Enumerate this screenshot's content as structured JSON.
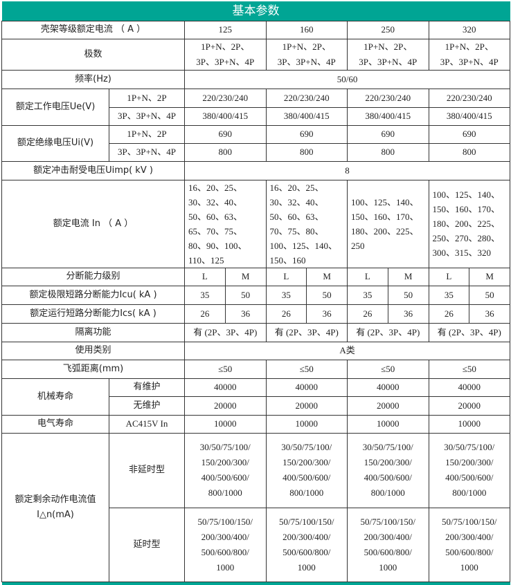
{
  "title": "基本参数",
  "accent_color": "#00a594",
  "frame_current": {
    "label": "壳架等级额定电流 （ A ）",
    "values": [
      "125",
      "160",
      "250",
      "320"
    ]
  },
  "poles": {
    "label": "极数",
    "values": [
      "1P+N、2P、\n3P、3P+N、4P",
      "1P+N、2P、\n3P、3P+N、4P",
      "1P+N、2P、\n3P、3P+N、4P",
      "1P+N、2P、\n3P、3P+N、4P"
    ]
  },
  "frequency": {
    "label": "频率(Hz)",
    "value": "50/60"
  },
  "ue": {
    "label": "额定工作电压Ue(V)",
    "sub": [
      {
        "label": "1P+N、2P",
        "values": [
          "220/230/240",
          "220/230/240",
          "220/230/240",
          "220/230/240"
        ]
      },
      {
        "label": "3P、3P+N、4P",
        "values": [
          "380/400/415",
          "380/400/415",
          "380/400/415",
          "380/400/415"
        ]
      }
    ]
  },
  "ui": {
    "label": "额定绝缘电压Ui(V)",
    "sub": [
      {
        "label": "1P+N、2P",
        "values": [
          "690",
          "690",
          "690",
          "690"
        ]
      },
      {
        "label": "3P、3P+N、4P",
        "values": [
          "800",
          "800",
          "800",
          "800"
        ]
      }
    ]
  },
  "uimp": {
    "label": "额定冲击耐受电压Uimp( kV )",
    "value": "8"
  },
  "in": {
    "label": "额定电流 In （ A ）",
    "values": [
      "16、20、25、\n30、32、40、\n50、60、63、\n65、70、75、\n80、90、100、\n110、125",
      "16、20、25、\n30、32、40、\n50、60、63、\n70、75、80、\n100、125、140、\n150、160",
      "100、125、140、\n150、160、170、\n180、200、225、\n250",
      "100、125、140、\n150、160、170、\n180、200、225、\n250、270、280、\n300、315、320"
    ]
  },
  "breaking_class": {
    "label": "分断能力级别",
    "values": [
      "L",
      "M",
      "L",
      "M",
      "L",
      "M",
      "L",
      "M"
    ]
  },
  "icu": {
    "label": "额定极限短路分断能力Icu( kA )",
    "values": [
      "35",
      "50",
      "35",
      "50",
      "35",
      "50",
      "35",
      "50"
    ]
  },
  "ics": {
    "label": "额定运行短路分断能力Ics( kA )",
    "values": [
      "26",
      "36",
      "26",
      "36",
      "26",
      "36",
      "26",
      "36"
    ]
  },
  "isolation": {
    "label": "隔离功能",
    "values": [
      "有 (2P、3P、4P)",
      "有 (2P、3P、4P)",
      "有 (2P、3P、4P)",
      "有 (2P、3P、4P)"
    ]
  },
  "category": {
    "label": "使用类别",
    "value": "A类"
  },
  "arc": {
    "label": "飞弧距离(mm)",
    "values": [
      "≤50",
      "≤50",
      "≤50",
      "≤50"
    ]
  },
  "mech_life": {
    "label": "机械寿命",
    "sub": [
      {
        "label": "有维护",
        "values": [
          "40000",
          "40000",
          "40000",
          "40000"
        ]
      },
      {
        "label": "无维护",
        "values": [
          "20000",
          "20000",
          "20000",
          "20000"
        ]
      }
    ]
  },
  "elec_life": {
    "label": "电气寿命",
    "sub_label": "AC415V In",
    "values": [
      "10000",
      "10000",
      "10000",
      "10000"
    ]
  },
  "residual": {
    "label": "额定剩余动作电流值\nI△n(mA)",
    "sub": [
      {
        "label": "非延时型",
        "values": [
          "30/50/75/100/\n150/200/300/\n400/500/600/\n800/1000",
          "30/50/75/100/\n150/200/300/\n400/500/600/\n800/1000",
          "30/50/75/100/\n150/200/300/\n400/500/600/\n800/1000",
          "30/50/75/100/\n150/200/300/\n400/500/600/\n800/1000"
        ]
      },
      {
        "label": "延时型",
        "values": [
          "50/75/100/150/\n200/300/400/\n500/600/800/\n1000",
          "50/75/100/150/\n200/300/400/\n500/600/800/\n1000",
          "50/75/100/150/\n200/300/400/\n500/600/800/\n1000",
          "50/75/100/150/\n200/300/400/\n500/600/800/\n1000"
        ]
      }
    ]
  }
}
